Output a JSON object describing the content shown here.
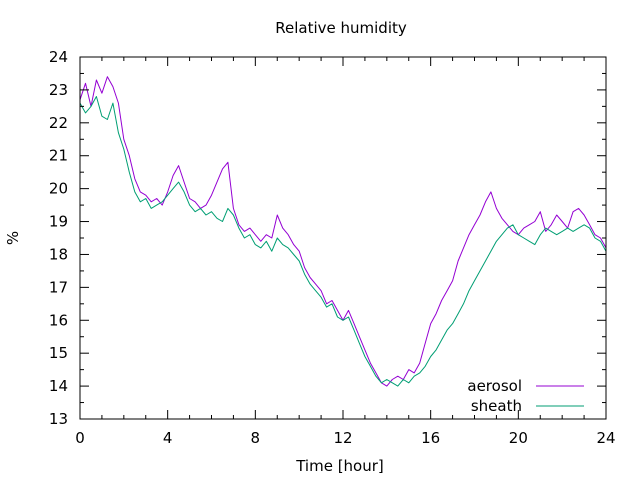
{
  "chart_data": {
    "type": "line",
    "title": "Relative humidity",
    "xlabel": "Time [hour]",
    "ylabel": "%",
    "xlim": [
      0,
      24
    ],
    "ylim": [
      13,
      24
    ],
    "xticks": [
      0,
      4,
      8,
      12,
      16,
      20,
      24
    ],
    "yticks": [
      13,
      14,
      15,
      16,
      17,
      18,
      19,
      20,
      21,
      22,
      23,
      24
    ],
    "grid": false,
    "legend_position": "bottom-right",
    "series": [
      {
        "name": "aerosol",
        "color": "#9400d3",
        "x": [
          0.0,
          0.25,
          0.5,
          0.75,
          1.0,
          1.25,
          1.5,
          1.75,
          2.0,
          2.25,
          2.5,
          2.75,
          3.0,
          3.25,
          3.5,
          3.75,
          4.0,
          4.25,
          4.5,
          4.75,
          5.0,
          5.25,
          5.5,
          5.75,
          6.0,
          6.25,
          6.5,
          6.75,
          7.0,
          7.25,
          7.5,
          7.75,
          8.0,
          8.25,
          8.5,
          8.75,
          9.0,
          9.25,
          9.5,
          9.75,
          10.0,
          10.25,
          10.5,
          10.75,
          11.0,
          11.25,
          11.5,
          11.75,
          12.0,
          12.25,
          12.5,
          12.75,
          13.0,
          13.25,
          13.5,
          13.75,
          14.0,
          14.25,
          14.5,
          14.75,
          15.0,
          15.25,
          15.5,
          15.75,
          16.0,
          16.25,
          16.5,
          16.75,
          17.0,
          17.25,
          17.5,
          17.75,
          18.0,
          18.25,
          18.5,
          18.75,
          19.0,
          19.25,
          19.5,
          19.75,
          20.0,
          20.25,
          20.5,
          20.75,
          21.0,
          21.25,
          21.5,
          21.75,
          22.0,
          22.25,
          22.5,
          22.75,
          23.0,
          23.25,
          23.5,
          23.75,
          24.0
        ],
        "y": [
          22.7,
          23.2,
          22.5,
          23.3,
          22.9,
          23.4,
          23.1,
          22.6,
          21.5,
          21.0,
          20.3,
          19.9,
          19.8,
          19.6,
          19.7,
          19.5,
          19.9,
          20.4,
          20.7,
          20.2,
          19.7,
          19.6,
          19.4,
          19.5,
          19.8,
          20.2,
          20.6,
          20.8,
          19.4,
          18.9,
          18.7,
          18.8,
          18.6,
          18.4,
          18.6,
          18.5,
          19.2,
          18.8,
          18.6,
          18.3,
          18.1,
          17.6,
          17.3,
          17.1,
          16.9,
          16.5,
          16.6,
          16.3,
          16.0,
          16.3,
          15.9,
          15.5,
          15.1,
          14.7,
          14.4,
          14.1,
          14.0,
          14.2,
          14.3,
          14.2,
          14.5,
          14.4,
          14.7,
          15.3,
          15.9,
          16.2,
          16.6,
          16.9,
          17.2,
          17.8,
          18.2,
          18.6,
          18.9,
          19.2,
          19.6,
          19.9,
          19.4,
          19.1,
          18.9,
          18.7,
          18.6,
          18.8,
          18.9,
          19.0,
          19.3,
          18.7,
          18.9,
          19.2,
          19.0,
          18.8,
          19.3,
          19.4,
          19.2,
          18.9,
          18.6,
          18.5,
          18.2
        ]
      },
      {
        "name": "sheath",
        "color": "#009e73",
        "x": [
          0.0,
          0.25,
          0.5,
          0.75,
          1.0,
          1.25,
          1.5,
          1.75,
          2.0,
          2.25,
          2.5,
          2.75,
          3.0,
          3.25,
          3.5,
          3.75,
          4.0,
          4.25,
          4.5,
          4.75,
          5.0,
          5.25,
          5.5,
          5.75,
          6.0,
          6.25,
          6.5,
          6.75,
          7.0,
          7.25,
          7.5,
          7.75,
          8.0,
          8.25,
          8.5,
          8.75,
          9.0,
          9.25,
          9.5,
          9.75,
          10.0,
          10.25,
          10.5,
          10.75,
          11.0,
          11.25,
          11.5,
          11.75,
          12.0,
          12.25,
          12.5,
          12.75,
          13.0,
          13.25,
          13.5,
          13.75,
          14.0,
          14.25,
          14.5,
          14.75,
          15.0,
          15.25,
          15.5,
          15.75,
          16.0,
          16.25,
          16.5,
          16.75,
          17.0,
          17.25,
          17.5,
          17.75,
          18.0,
          18.25,
          18.5,
          18.75,
          19.0,
          19.25,
          19.5,
          19.75,
          20.0,
          20.25,
          20.5,
          20.75,
          21.0,
          21.25,
          21.5,
          21.75,
          22.0,
          22.25,
          22.5,
          22.75,
          23.0,
          23.25,
          23.5,
          23.75,
          24.0
        ],
        "y": [
          22.6,
          22.3,
          22.5,
          22.8,
          22.2,
          22.1,
          22.6,
          21.7,
          21.2,
          20.5,
          19.9,
          19.6,
          19.7,
          19.4,
          19.5,
          19.6,
          19.8,
          20.0,
          20.2,
          19.9,
          19.5,
          19.3,
          19.4,
          19.2,
          19.3,
          19.1,
          19.0,
          19.4,
          19.2,
          18.8,
          18.5,
          18.6,
          18.3,
          18.2,
          18.4,
          18.1,
          18.5,
          18.3,
          18.2,
          18.0,
          17.8,
          17.4,
          17.1,
          16.9,
          16.7,
          16.4,
          16.5,
          16.1,
          16.0,
          16.1,
          15.7,
          15.3,
          14.9,
          14.6,
          14.3,
          14.1,
          14.2,
          14.1,
          14.0,
          14.2,
          14.1,
          14.3,
          14.4,
          14.6,
          14.9,
          15.1,
          15.4,
          15.7,
          15.9,
          16.2,
          16.5,
          16.9,
          17.2,
          17.5,
          17.8,
          18.1,
          18.4,
          18.6,
          18.8,
          18.9,
          18.6,
          18.5,
          18.4,
          18.3,
          18.6,
          18.8,
          18.7,
          18.6,
          18.7,
          18.8,
          18.7,
          18.8,
          18.9,
          18.8,
          18.5,
          18.4,
          18.1
        ]
      }
    ]
  }
}
